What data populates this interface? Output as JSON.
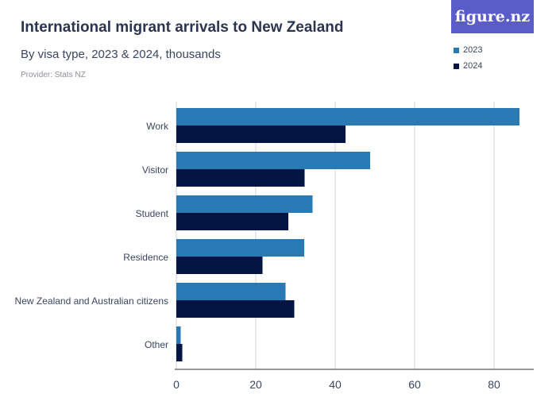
{
  "title": "International migrant arrivals to New Zealand",
  "subtitle": "By visa type, 2023 & 2024, thousands",
  "provider": "Provider: Stats NZ",
  "logo": "figure.nz",
  "chart_data": {
    "type": "bar",
    "orientation": "horizontal",
    "title": "International migrant arrivals to New Zealand",
    "categories": [
      "Work",
      "Visitor",
      "Student",
      "Residence",
      "New Zealand and Australian citizens",
      "Other"
    ],
    "series": [
      {
        "name": "2023",
        "color": "#2979b5",
        "values": [
          86.4,
          48.8,
          34.3,
          32.2,
          27.5,
          1.1
        ]
      },
      {
        "name": "2024",
        "color": "#041543",
        "values": [
          42.6,
          32.3,
          28.2,
          21.7,
          29.7,
          1.5
        ]
      }
    ],
    "xlim": [
      0,
      90
    ],
    "xticks": [
      "0",
      "20",
      "40",
      "60",
      "80"
    ],
    "grid": true,
    "legend": "top-right"
  }
}
